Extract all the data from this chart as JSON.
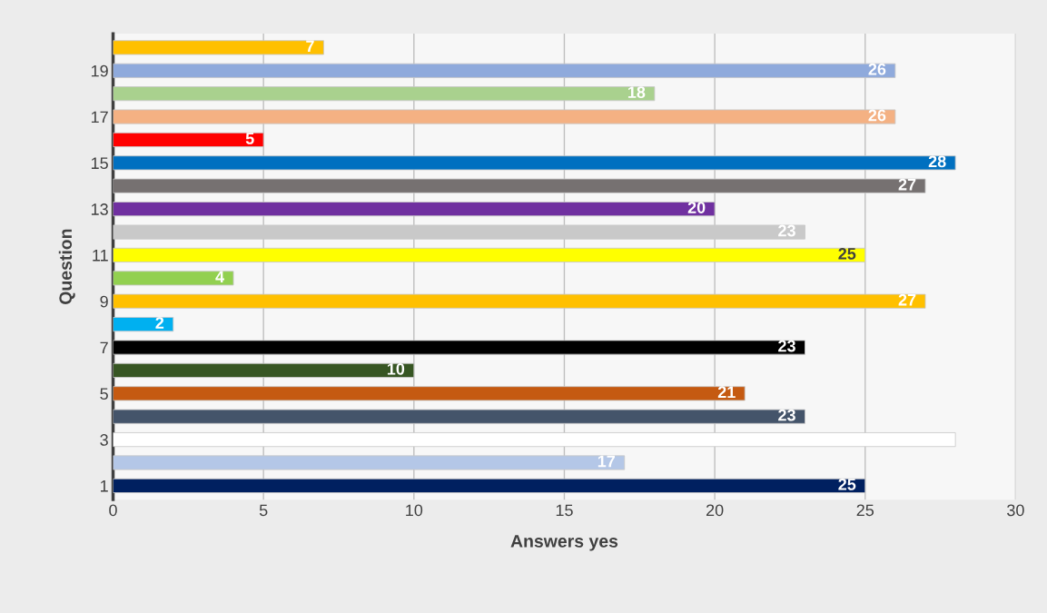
{
  "chart_data": {
    "type": "bar",
    "orientation": "horizontal",
    "xlabel": "Answers yes",
    "ylabel": "Question",
    "categories": [
      null,
      "19",
      null,
      "17",
      null,
      "15",
      null,
      "13",
      null,
      "11",
      null,
      "9",
      null,
      "7",
      null,
      "5",
      null,
      "3",
      null,
      "1"
    ],
    "values": [
      7,
      26,
      18,
      26,
      5,
      28,
      27,
      20,
      23,
      25,
      4,
      27,
      2,
      23,
      10,
      21,
      23,
      28,
      17,
      25
    ],
    "colors": [
      "#ffc000",
      "#8faadc",
      "#a9d18e",
      "#f4b183",
      "#ff0000",
      "#0070c0",
      "#767171",
      "#7030a0",
      "#c9c9c9",
      "#ffff00",
      "#92d050",
      "#ffc000",
      "#00b0f0",
      "#000000",
      "#375623",
      "#c55a11",
      "#44546a",
      "#ffffff",
      "#b4c7e7",
      "#002060"
    ],
    "value_labels": [
      "7",
      "26",
      "18",
      "26",
      "5",
      "28",
      "27",
      "20",
      "23",
      "25",
      "4",
      "27",
      "2",
      "23",
      "10",
      "21",
      "23",
      null,
      "17",
      "25"
    ],
    "xlim": [
      0,
      30
    ],
    "xticks": [
      0,
      5,
      10,
      15,
      20,
      25,
      30
    ],
    "grid": "x",
    "legend": false
  }
}
